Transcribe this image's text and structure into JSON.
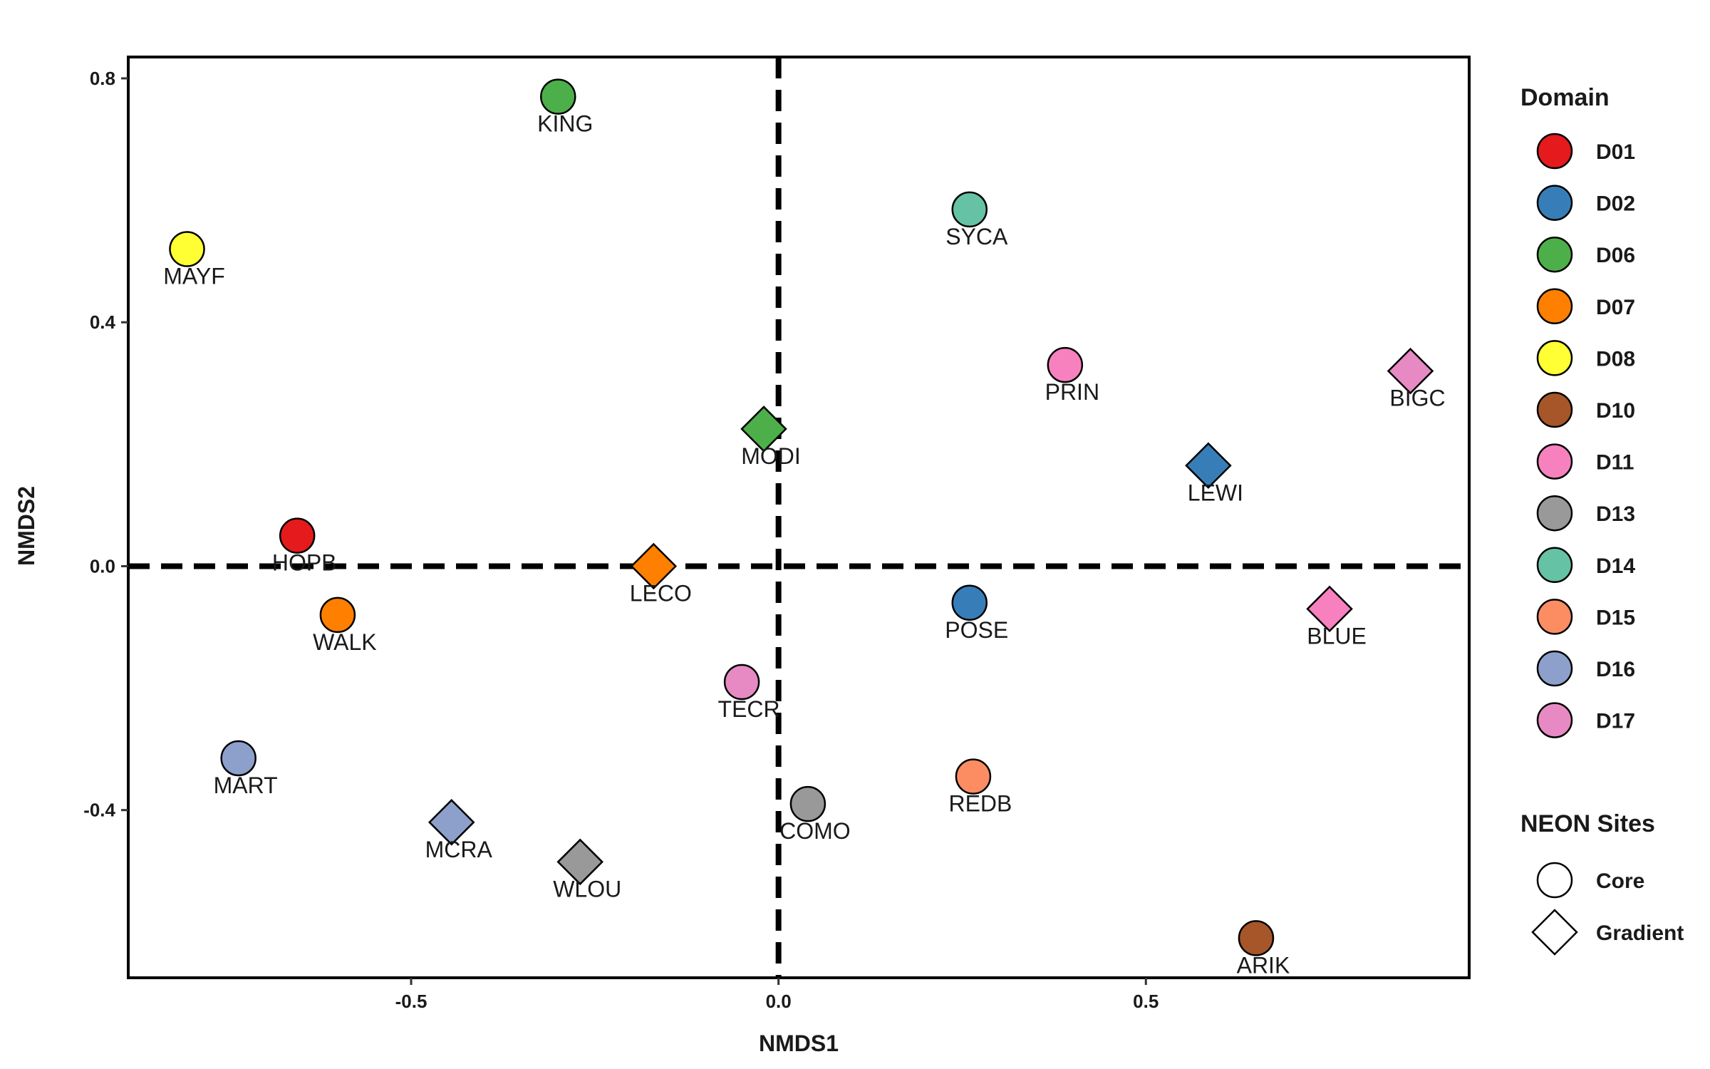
{
  "chart_data": {
    "type": "scatter",
    "xlabel": "NMDS1",
    "ylabel": "NMDS2",
    "xlim": [
      -0.885,
      0.94
    ],
    "ylim": [
      -0.675,
      0.835
    ],
    "xticks": [
      -0.5,
      0.0,
      0.5
    ],
    "xtick_labels": [
      "-0.5",
      "0.0",
      "0.5"
    ],
    "yticks": [
      -0.4,
      0.0,
      0.4,
      0.8
    ],
    "ytick_labels": [
      "-0.4",
      "0.0",
      "0.4",
      "0.8"
    ],
    "reference_lines": {
      "x": 0,
      "y": 0,
      "style": "dashed"
    },
    "grid": false,
    "legend": {
      "placement": "right",
      "domain_title": "Domain",
      "domains": [
        {
          "name": "D01",
          "color": "#e41a1c"
        },
        {
          "name": "D02",
          "color": "#377eb8"
        },
        {
          "name": "D06",
          "color": "#4daf4a"
        },
        {
          "name": "D07",
          "color": "#ff7f00"
        },
        {
          "name": "D08",
          "color": "#ffff33"
        },
        {
          "name": "D10",
          "color": "#a65628"
        },
        {
          "name": "D11",
          "color": "#f781bf"
        },
        {
          "name": "D13",
          "color": "#999999"
        },
        {
          "name": "D14",
          "color": "#66c2a5"
        },
        {
          "name": "D15",
          "color": "#fc8d62"
        },
        {
          "name": "D16",
          "color": "#8da0cb"
        },
        {
          "name": "D17",
          "color": "#e78ac3"
        }
      ],
      "sites_title": "NEON Sites",
      "site_types": [
        {
          "name": "Core",
          "shape": "circle"
        },
        {
          "name": "Gradient",
          "shape": "diamond"
        }
      ]
    },
    "points": [
      {
        "label": "KING",
        "x": -0.3,
        "y": 0.77,
        "domain": "D06",
        "site_type": "Core"
      },
      {
        "label": "MAYF",
        "x": -0.805,
        "y": 0.52,
        "domain": "D08",
        "site_type": "Core"
      },
      {
        "label": "SYCA",
        "x": 0.26,
        "y": 0.585,
        "domain": "D14",
        "site_type": "Core"
      },
      {
        "label": "PRIN",
        "x": 0.39,
        "y": 0.33,
        "domain": "D11",
        "site_type": "Core"
      },
      {
        "label": "BIGC",
        "x": 0.86,
        "y": 0.32,
        "domain": "D17",
        "site_type": "Gradient"
      },
      {
        "label": "MODI",
        "x": -0.02,
        "y": 0.225,
        "domain": "D06",
        "site_type": "Gradient"
      },
      {
        "label": "LEWI",
        "x": 0.585,
        "y": 0.165,
        "domain": "D02",
        "site_type": "Gradient"
      },
      {
        "label": "HOPB",
        "x": -0.655,
        "y": 0.05,
        "domain": "D01",
        "site_type": "Core"
      },
      {
        "label": "LECO",
        "x": -0.17,
        "y": 0.0,
        "domain": "D07",
        "site_type": "Gradient"
      },
      {
        "label": "POSE",
        "x": 0.26,
        "y": -0.06,
        "domain": "D02",
        "site_type": "Core"
      },
      {
        "label": "BLUE",
        "x": 0.75,
        "y": -0.07,
        "domain": "D11",
        "site_type": "Gradient"
      },
      {
        "label": "WALK",
        "x": -0.6,
        "y": -0.08,
        "domain": "D07",
        "site_type": "Core"
      },
      {
        "label": "TECR",
        "x": -0.05,
        "y": -0.19,
        "domain": "D17",
        "site_type": "Core"
      },
      {
        "label": "MART",
        "x": -0.735,
        "y": -0.315,
        "domain": "D16",
        "site_type": "Core"
      },
      {
        "label": "REDB",
        "x": 0.265,
        "y": -0.345,
        "domain": "D15",
        "site_type": "Core"
      },
      {
        "label": "COMO",
        "x": 0.04,
        "y": -0.39,
        "domain": "D13",
        "site_type": "Core"
      },
      {
        "label": "MCRA",
        "x": -0.445,
        "y": -0.42,
        "domain": "D16",
        "site_type": "Gradient"
      },
      {
        "label": "WLOU",
        "x": -0.27,
        "y": -0.485,
        "domain": "D13",
        "site_type": "Gradient"
      },
      {
        "label": "ARIK",
        "x": 0.65,
        "y": -0.61,
        "domain": "D10",
        "site_type": "Core"
      }
    ]
  }
}
